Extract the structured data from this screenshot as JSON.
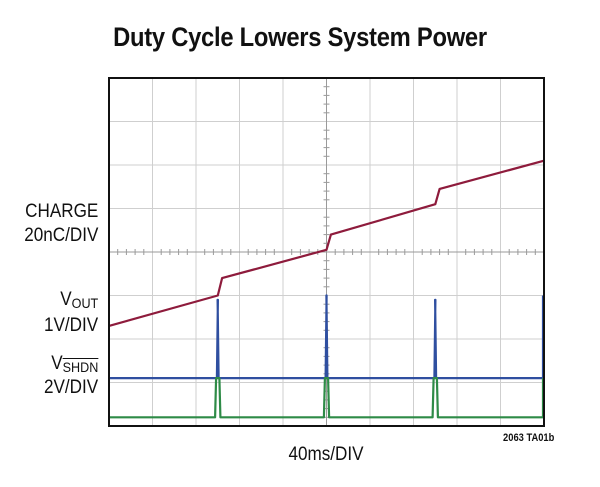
{
  "chart_data": {
    "type": "line",
    "title": "Duty Cycle Lowers System Power",
    "xlabel": "40ms/DIV",
    "figure_id": "2063 TA01b",
    "grid": true,
    "divisions": {
      "x": 10,
      "y": 8
    },
    "series": [
      {
        "name": "CHARGE",
        "scale": "20nC/DIV",
        "color": "#8e1b3c",
        "offset_div": 2.3,
        "values": [
          [
            0,
            0
          ],
          [
            2.5,
            0.7
          ],
          [
            2.6,
            1.1
          ],
          [
            5.0,
            1.75
          ],
          [
            5.1,
            2.1
          ],
          [
            7.5,
            2.8
          ],
          [
            7.6,
            3.15
          ],
          [
            10,
            3.8
          ]
        ]
      },
      {
        "name": "V_OUT",
        "scale": "1V/DIV",
        "color": "#2f4fa0",
        "offset_div": 1.1,
        "baseline": 0,
        "pulses": [
          {
            "t": 2.5,
            "h": 1.8
          },
          {
            "t": 5.0,
            "h": 1.9
          },
          {
            "t": 7.5,
            "h": 1.8
          },
          {
            "t": 10.0,
            "h": 1.9
          }
        ]
      },
      {
        "name": "V_SHDN",
        "scale": "2V/DIV",
        "color": "#2e8b47",
        "offset_div": 0.2,
        "baseline": 0,
        "pulses": [
          {
            "t": 2.5,
            "h": 0.9,
            "w": 0.12
          },
          {
            "t": 5.0,
            "h": 0.9,
            "w": 0.12
          },
          {
            "t": 7.5,
            "h": 0.9,
            "w": 0.12
          },
          {
            "t": 10.0,
            "h": 0.9,
            "w": 0.05
          }
        ]
      }
    ],
    "labels": {
      "charge_name": "CHARGE",
      "charge_scale": "20nC/DIV",
      "vout_v": "V",
      "vout_sub": "OUT",
      "vout_scale": "1V/DIV",
      "vshdn_v": "V",
      "vshdn_sub": "SHDN",
      "vshdn_scale": "2V/DIV"
    }
  }
}
